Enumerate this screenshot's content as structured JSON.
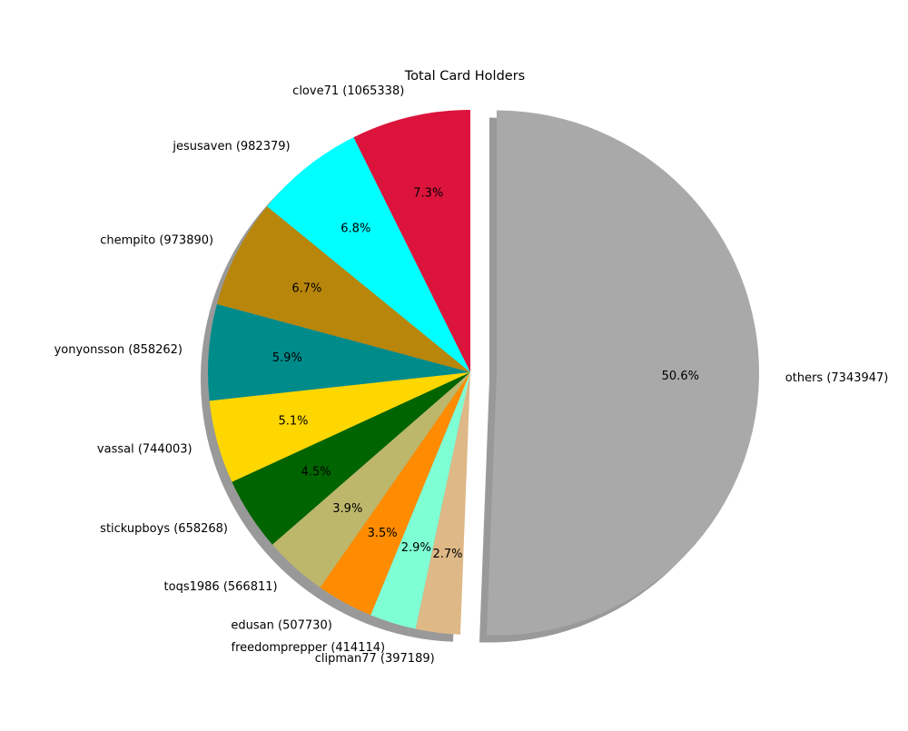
{
  "chart_data": {
    "type": "pie",
    "title": "Total Card Holders",
    "start_angle_deg": 90,
    "direction": "counterclockwise",
    "shadow": true,
    "exploded": [
      "others"
    ],
    "slices": [
      {
        "name": "clove71",
        "value": 1065338,
        "label": "clove71 (1065338)",
        "pct_label": "7.3%",
        "color": "#DC143C"
      },
      {
        "name": "jesusaven",
        "value": 982379,
        "label": "jesusaven (982379)",
        "pct_label": "6.8%",
        "color": "#00FFFF"
      },
      {
        "name": "chempito",
        "value": 973890,
        "label": "chempito (973890)",
        "pct_label": "6.7%",
        "color": "#B8860B"
      },
      {
        "name": "yonyonsson",
        "value": 858262,
        "label": "yonyonsson (858262)",
        "pct_label": "5.9%",
        "color": "#008B8B"
      },
      {
        "name": "vassal",
        "value": 744003,
        "label": "vassal (744003)",
        "pct_label": "5.1%",
        "color": "#FFD700"
      },
      {
        "name": "stickupboys",
        "value": 658268,
        "label": "stickupboys (658268)",
        "pct_label": "4.5%",
        "color": "#006400"
      },
      {
        "name": "toqs1986",
        "value": 566811,
        "label": "toqs1986 (566811)",
        "pct_label": "3.9%",
        "color": "#BDB76B"
      },
      {
        "name": "edusan",
        "value": 507730,
        "label": "edusan (507730)",
        "pct_label": "3.5%",
        "color": "#FF8C00"
      },
      {
        "name": "freedomprepper",
        "value": 414114,
        "label": "freedomprepper (414114)",
        "pct_label": "2.9%",
        "color": "#7FFFD4"
      },
      {
        "name": "clipman77",
        "value": 397189,
        "label": "clipman77 (397189)",
        "pct_label": "2.7%",
        "color": "#DEB887"
      },
      {
        "name": "others",
        "value": 7343947,
        "label": "others (7343947)",
        "pct_label": "50.6%",
        "color": "#A9A9A9"
      }
    ]
  }
}
